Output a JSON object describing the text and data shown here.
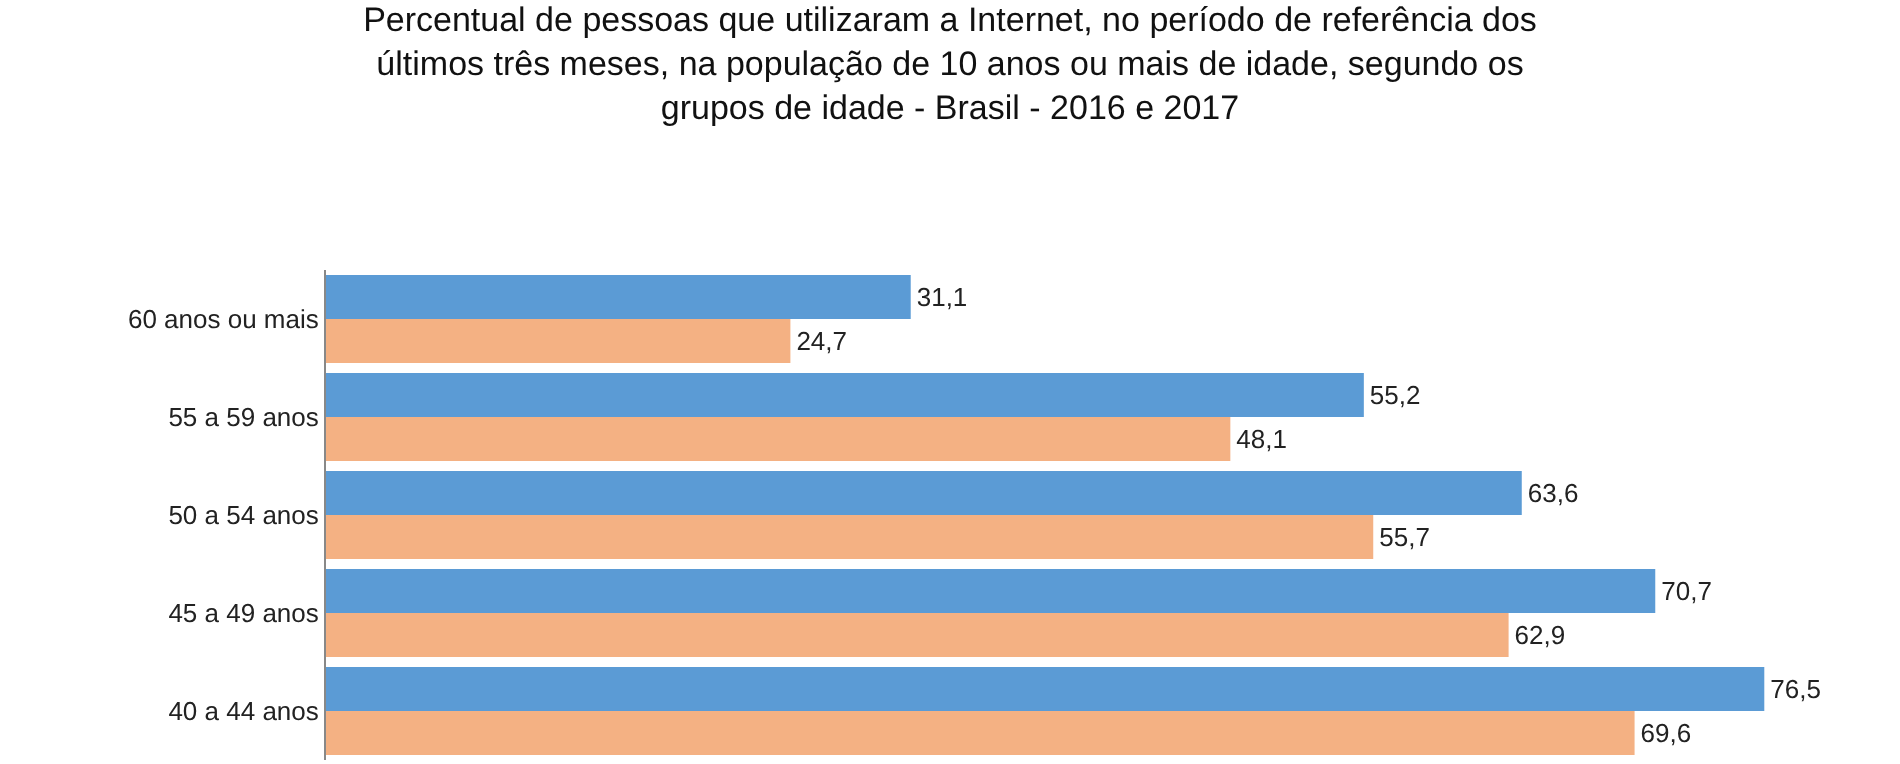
{
  "chart_data": {
    "type": "bar",
    "orientation": "horizontal",
    "title": "Percentual de pessoas que utilizaram a Internet, no período de referência dos\núltimos três meses, na população de 10 anos ou mais de idade, segundo os\ngrupos de idade - Brasil - 2016 e 2017",
    "categories": [
      "60 anos ou mais",
      "55 a 59 anos",
      "50 a 54 anos",
      "45 a 49 anos",
      "40 a 44 anos"
    ],
    "series": [
      {
        "color": "#5b9bd5",
        "values": [
          31.1,
          55.2,
          63.6,
          70.7,
          76.5
        ],
        "value_labels": [
          "31,1",
          "55,2",
          "63,6",
          "70,7",
          "76,5"
        ]
      },
      {
        "color": "#f4b183",
        "values": [
          24.7,
          48.1,
          55.7,
          62.9,
          69.6
        ],
        "value_labels": [
          "24,7",
          "48,1",
          "55,7",
          "62,9",
          "69,6"
        ]
      }
    ],
    "data_labels": true
  }
}
